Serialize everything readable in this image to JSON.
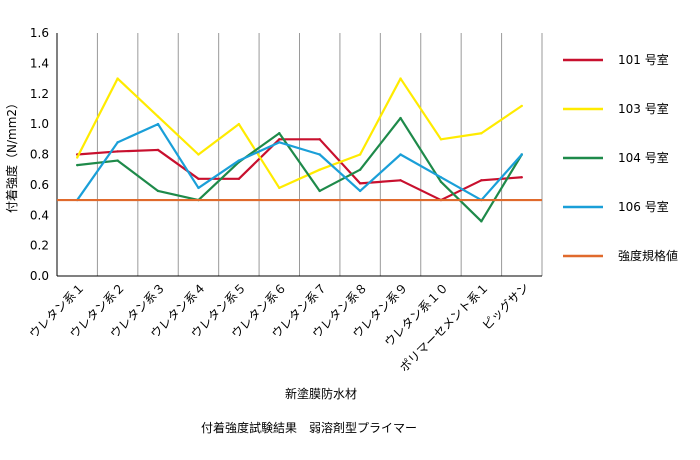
{
  "chart_data": {
    "type": "line",
    "title": "付着強度試験結果　弱溶剤型プライマー",
    "xlabel": "新塗膜防水材",
    "ylabel": "付着強度（N/mm2）",
    "ylim": [
      0,
      1.6
    ],
    "yticks": [
      "0.0",
      "0.2",
      "0.4",
      "0.6",
      "0.8",
      "1.0",
      "1.2",
      "1.4",
      "1.6"
    ],
    "grid": "vertical",
    "legend_position": "right",
    "categories": [
      "ウレタン系１",
      "ウレタン系２",
      "ウレタン系３",
      "ウレタン系４",
      "ウレタン系５",
      "ウレタン系６",
      "ウレタン系７",
      "ウレタン系８",
      "ウレタン系９",
      "ウレタン系１０",
      "ポリマーセメント系１",
      "ピッグサン"
    ],
    "series": [
      {
        "name": "101 号室",
        "color": "#c8102e",
        "values": [
          0.8,
          0.82,
          0.83,
          0.64,
          0.64,
          0.9,
          0.9,
          0.61,
          0.63,
          0.5,
          0.63,
          0.65
        ]
      },
      {
        "name": "103 号室",
        "color": "#ffeb00",
        "values": [
          0.78,
          1.3,
          1.05,
          0.8,
          1.0,
          0.58,
          0.7,
          0.8,
          1.3,
          0.9,
          0.94,
          1.12
        ]
      },
      {
        "name": "104 号室",
        "color": "#1e8a4a",
        "values": [
          0.73,
          0.76,
          0.56,
          0.5,
          0.75,
          0.94,
          0.56,
          0.7,
          1.04,
          0.62,
          0.36,
          0.8
        ]
      },
      {
        "name": "106 号室",
        "color": "#1a9fd8",
        "values": [
          0.5,
          0.88,
          1.0,
          0.58,
          0.76,
          0.88,
          0.8,
          0.56,
          0.8,
          0.65,
          0.5,
          0.8
        ]
      }
    ],
    "reference_line": {
      "name": "強度規格値",
      "color": "#e06a2c",
      "value": 0.5
    }
  }
}
